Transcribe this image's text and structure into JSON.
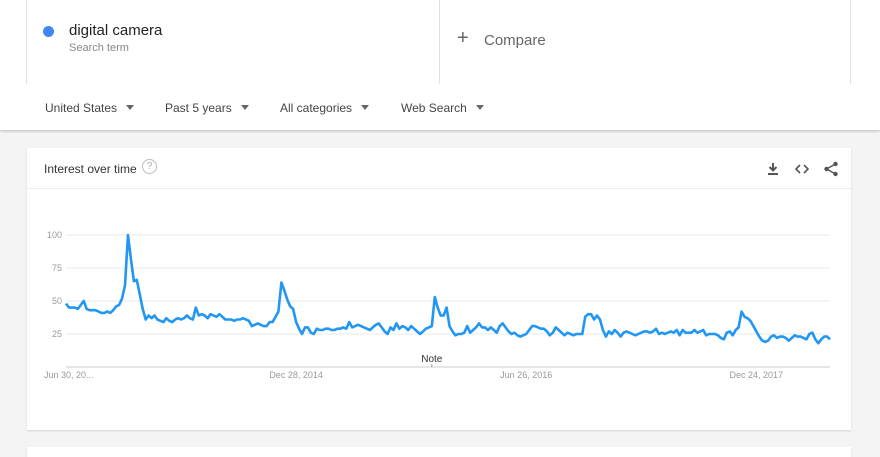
{
  "search_term": {
    "name": "digital camera",
    "subtitle": "Search term",
    "color": "#4285f4"
  },
  "compare": {
    "icon": "plus-icon",
    "label": "Compare"
  },
  "filters": [
    {
      "label": "United States"
    },
    {
      "label": "Past 5 years"
    },
    {
      "label": "All categories"
    },
    {
      "label": "Web Search"
    }
  ],
  "card": {
    "title": "Interest over time",
    "help_icon": "question-circle-icon",
    "actions": [
      "download-icon",
      "embed-code-icon",
      "share-icon"
    ]
  },
  "chart_data": {
    "type": "line",
    "x_start": "2013-06-30",
    "x_frequency": "weekly",
    "ylim": [
      0,
      100
    ],
    "yticks": [
      25,
      50,
      75,
      100
    ],
    "xtick_labels": [
      "Jun 30, 20...",
      "Dec 28, 2014",
      "Jun 26, 2016",
      "Dec 24, 2017"
    ],
    "grid": true,
    "line_color": "#2196f3",
    "annotation": {
      "label": "Note",
      "week_index": 124
    },
    "values": [
      48,
      45,
      45,
      45,
      44,
      47,
      50,
      44,
      43,
      43,
      43,
      42,
      41,
      41,
      42,
      41,
      43,
      46,
      47,
      52,
      62,
      100,
      82,
      65,
      66,
      55,
      44,
      36,
      39,
      37,
      39,
      36,
      35,
      34,
      37,
      35,
      34,
      36,
      37,
      36,
      37,
      39,
      37,
      36,
      45,
      39,
      40,
      39,
      37,
      40,
      39,
      38,
      40,
      38,
      36,
      36,
      36,
      35,
      36,
      36,
      37,
      36,
      35,
      31,
      32,
      33,
      32,
      31,
      31,
      34,
      34,
      38,
      42,
      64,
      58,
      51,
      46,
      44,
      34,
      29,
      25,
      30,
      30,
      26,
      25,
      29,
      28,
      28,
      29,
      29,
      28,
      28,
      29,
      29,
      30,
      29,
      34,
      30,
      31,
      32,
      31,
      30,
      29,
      28,
      30,
      32,
      33,
      30,
      27,
      25,
      30,
      28,
      33,
      29,
      31,
      30,
      28,
      31,
      29,
      27,
      25,
      27,
      29,
      30,
      31,
      53,
      45,
      39,
      39,
      45,
      31,
      27,
      24,
      25,
      25,
      26,
      31,
      26,
      28,
      30,
      33,
      30,
      30,
      28,
      30,
      28,
      26,
      31,
      33,
      30,
      27,
      25,
      26,
      24,
      23,
      24,
      25,
      28,
      31,
      31,
      30,
      29,
      29,
      27,
      24,
      26,
      30,
      28,
      26,
      24,
      26,
      25,
      24,
      25,
      25,
      25,
      38,
      40,
      40,
      36,
      39,
      36,
      28,
      23,
      27,
      25,
      28,
      26,
      23,
      26,
      27,
      26,
      25,
      24,
      25,
      26,
      27,
      27,
      26,
      27,
      29,
      25,
      26,
      25,
      26,
      27,
      26,
      28,
      24,
      28,
      26,
      26,
      26,
      28,
      26,
      27,
      28,
      24,
      25,
      25,
      25,
      24,
      22,
      21,
      26,
      27,
      24,
      28,
      30,
      42,
      38,
      37,
      35,
      31,
      27,
      23,
      20,
      19,
      20,
      23,
      24,
      22,
      23,
      23,
      22,
      20,
      22,
      24,
      23,
      23,
      22,
      21,
      25,
      26,
      21,
      18,
      21,
      23,
      23,
      21
    ]
  }
}
